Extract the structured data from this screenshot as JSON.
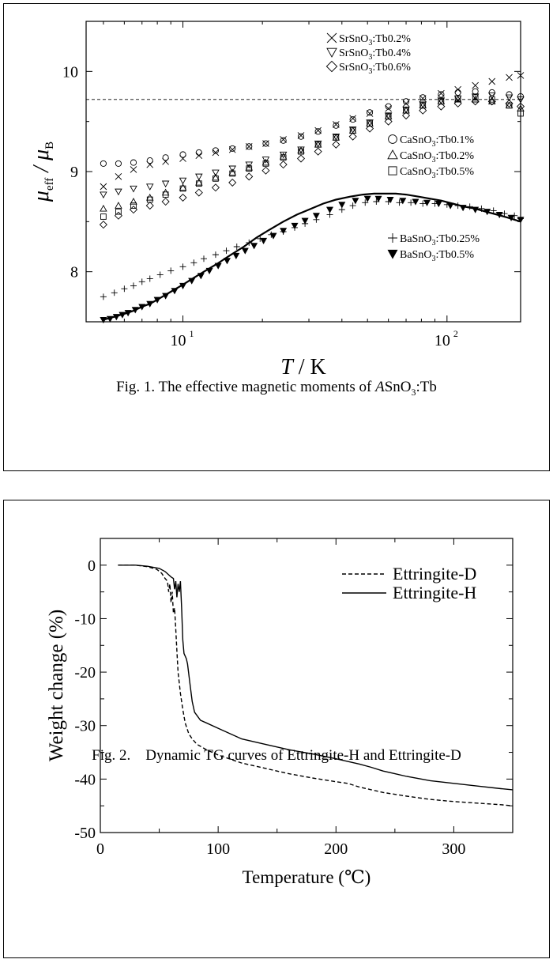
{
  "chart_data": [
    {
      "type": "scatter",
      "figure_caption_prefix": "Fig. 1. The effective magnetic moments of",
      "figure_caption_A": "A",
      "figure_caption_suffix": "SnO",
      "figure_caption_sub": "3",
      "figure_caption_end": ":Tb",
      "ylabel": "μ",
      "ylabel_sub1": "eff",
      "ylabel_mid": " / μ",
      "ylabel_sub2": "B",
      "xlabel_T": "T",
      "xlabel_unit": " / K",
      "xscale": "log",
      "xlim": [
        4.3,
        190
      ],
      "ylim": [
        7.5,
        10.5
      ],
      "x_ticks": [
        {
          "v": 10,
          "base": "10",
          "exp": "1"
        },
        {
          "v": 100,
          "base": "10",
          "exp": "2"
        }
      ],
      "y_ticks": [
        8,
        9,
        10
      ],
      "reference_line": {
        "y": 9.72,
        "style": "dashed"
      },
      "series": [
        {
          "name": "SrSnO3:Tb0.2%",
          "marker": "x",
          "x": [
            5,
            5.7,
            6.5,
            7.5,
            8.6,
            10,
            11.5,
            13.3,
            15.4,
            17.8,
            20.6,
            24,
            28,
            32.5,
            38,
            44,
            51,
            60,
            70,
            81,
            95,
            110,
            128,
            148,
            172,
            190
          ],
          "y": [
            8.85,
            8.95,
            9.02,
            9.07,
            9.1,
            9.13,
            9.16,
            9.19,
            9.22,
            9.25,
            9.28,
            9.32,
            9.36,
            9.41,
            9.47,
            9.53,
            9.58,
            9.63,
            9.68,
            9.73,
            9.78,
            9.82,
            9.86,
            9.9,
            9.94,
            9.96
          ]
        },
        {
          "name": "SrSnO3:Tb0.4%",
          "marker": "triangle-down-open",
          "x": [
            5,
            5.7,
            6.5,
            7.5,
            8.6,
            10,
            11.5,
            13.3,
            15.4,
            17.8,
            20.6,
            24,
            28,
            32.5,
            38,
            44,
            51,
            60,
            70,
            81,
            95,
            110,
            128,
            148,
            172,
            190
          ],
          "y": [
            8.77,
            8.8,
            8.83,
            8.85,
            8.88,
            8.91,
            8.95,
            8.99,
            9.03,
            9.07,
            9.12,
            9.17,
            9.22,
            9.28,
            9.35,
            9.42,
            9.49,
            9.56,
            9.62,
            9.67,
            9.71,
            9.73,
            9.75,
            9.76,
            9.74,
            9.72
          ]
        },
        {
          "name": "SrSnO3:Tb0.6%",
          "marker": "diamond-open",
          "x": [
            5,
            5.7,
            6.5,
            7.5,
            8.6,
            10,
            11.5,
            13.3,
            15.4,
            17.8,
            20.6,
            24,
            28,
            32.5,
            38,
            44,
            51,
            60,
            70,
            81,
            95,
            110,
            128,
            148,
            172,
            190
          ],
          "y": [
            8.47,
            8.56,
            8.62,
            8.66,
            8.7,
            8.74,
            8.79,
            8.84,
            8.89,
            8.95,
            9.01,
            9.07,
            9.13,
            9.2,
            9.27,
            9.35,
            9.43,
            9.5,
            9.56,
            9.61,
            9.65,
            9.68,
            9.7,
            9.7,
            9.68,
            9.65
          ]
        },
        {
          "name": "CaSnO3:Tb0.1%",
          "marker": "circle-open",
          "x": [
            5,
            5.7,
            6.5,
            7.5,
            8.6,
            10,
            11.5,
            13.3,
            15.4,
            17.8,
            20.6,
            24,
            28,
            32.5,
            38,
            44,
            51,
            60,
            70,
            81,
            95,
            110,
            128,
            148,
            172,
            190
          ],
          "y": [
            9.08,
            9.08,
            9.09,
            9.11,
            9.14,
            9.17,
            9.19,
            9.21,
            9.23,
            9.25,
            9.28,
            9.31,
            9.35,
            9.4,
            9.46,
            9.52,
            9.59,
            9.65,
            9.7,
            9.74,
            9.77,
            9.79,
            9.8,
            9.79,
            9.77,
            9.75
          ]
        },
        {
          "name": "CaSnO3:Tb0.2%",
          "marker": "triangle-up-open",
          "x": [
            5,
            5.7,
            6.5,
            7.5,
            8.6,
            10,
            11.5,
            13.3,
            15.4,
            17.8,
            20.6,
            24,
            28,
            32.5,
            38,
            44,
            51,
            60,
            70,
            81,
            95,
            110,
            128,
            148,
            172,
            190
          ],
          "y": [
            8.63,
            8.66,
            8.7,
            8.74,
            8.79,
            8.84,
            8.89,
            8.94,
            8.99,
            9.04,
            9.09,
            9.15,
            9.21,
            9.27,
            9.34,
            9.41,
            9.48,
            9.55,
            9.61,
            9.66,
            9.7,
            9.72,
            9.72,
            9.7,
            9.66,
            9.63
          ]
        },
        {
          "name": "CaSnO3:Tb0.5%",
          "marker": "square-open",
          "x": [
            5,
            5.7,
            6.5,
            7.5,
            8.6,
            10,
            11.5,
            13.3,
            15.4,
            17.8,
            20.6,
            24,
            28,
            32.5,
            38,
            44,
            51,
            60,
            70,
            81,
            95,
            110,
            128,
            148,
            172,
            190
          ],
          "y": [
            8.55,
            8.6,
            8.66,
            8.72,
            8.77,
            8.83,
            8.88,
            8.93,
            8.98,
            9.03,
            9.08,
            9.14,
            9.2,
            9.27,
            9.34,
            9.41,
            9.48,
            9.55,
            9.61,
            9.66,
            9.7,
            9.73,
            9.74,
            9.72,
            9.66,
            9.58
          ]
        },
        {
          "name": "BaSnO3:Tb0.25%",
          "marker": "plus",
          "x": [
            5,
            5.5,
            6,
            6.5,
            7,
            7.5,
            8.2,
            9,
            10,
            11,
            12,
            13.3,
            14.6,
            16,
            17.8,
            19.6,
            21.6,
            24,
            26.5,
            29,
            32,
            36,
            40,
            44,
            49,
            54,
            60,
            66,
            73,
            81,
            90,
            100,
            110,
            122,
            135,
            150,
            165,
            180,
            190
          ],
          "y": [
            7.75,
            7.79,
            7.83,
            7.86,
            7.9,
            7.93,
            7.97,
            8.01,
            8.05,
            8.09,
            8.13,
            8.17,
            8.21,
            8.25,
            8.29,
            8.33,
            8.37,
            8.4,
            8.44,
            8.48,
            8.52,
            8.57,
            8.62,
            8.66,
            8.69,
            8.7,
            8.7,
            8.69,
            8.69,
            8.68,
            8.68,
            8.67,
            8.66,
            8.65,
            8.63,
            8.61,
            8.58,
            8.56,
            8.53
          ]
        },
        {
          "name": "BaSnO3:Tb0.5%",
          "marker": "triangle-down-filled",
          "x": [
            5,
            5.3,
            5.6,
            5.9,
            6.2,
            6.6,
            7,
            7.5,
            8,
            8.6,
            9.3,
            10,
            10.8,
            11.7,
            12.6,
            13.6,
            14.7,
            15.9,
            17.2,
            18.6,
            20.2,
            22,
            24,
            26.5,
            29,
            32,
            36,
            40,
            45,
            50,
            55,
            61,
            68,
            76,
            84,
            93,
            103,
            115,
            128,
            142,
            158,
            175,
            190
          ],
          "y": [
            7.52,
            7.53,
            7.55,
            7.57,
            7.59,
            7.62,
            7.65,
            7.68,
            7.72,
            7.76,
            7.81,
            7.86,
            7.91,
            7.96,
            8.01,
            8.06,
            8.11,
            8.16,
            8.21,
            8.26,
            8.31,
            8.36,
            8.41,
            8.46,
            8.51,
            8.56,
            8.62,
            8.67,
            8.71,
            8.73,
            8.73,
            8.72,
            8.71,
            8.7,
            8.69,
            8.68,
            8.66,
            8.64,
            8.62,
            8.6,
            8.57,
            8.54,
            8.52
          ]
        }
      ],
      "fit_curve": {
        "x": [
          5,
          5.5,
          6,
          6.5,
          7,
          7.5,
          8,
          9,
          10,
          11,
          12,
          13.5,
          15,
          17,
          19,
          21,
          24,
          27,
          30,
          34,
          38,
          43,
          48,
          53,
          58,
          64,
          70,
          78,
          86,
          95,
          105,
          116,
          128,
          140,
          155,
          170,
          190
        ],
        "y": [
          7.52,
          7.55,
          7.58,
          7.61,
          7.65,
          7.68,
          7.72,
          7.8,
          7.87,
          7.94,
          8.0,
          8.08,
          8.16,
          8.25,
          8.34,
          8.41,
          8.5,
          8.57,
          8.62,
          8.68,
          8.72,
          8.75,
          8.77,
          8.78,
          8.78,
          8.78,
          8.77,
          8.75,
          8.73,
          8.71,
          8.68,
          8.65,
          8.63,
          8.6,
          8.57,
          8.54,
          8.5
        ]
      }
    },
    {
      "type": "line",
      "figure_caption": "Fig. 2.    Dynamic TG curves of Ettringite-H and Ettringite-D",
      "xlabel": "Temperature (℃)",
      "ylabel": "Weight change (%)",
      "xlim": [
        0,
        350
      ],
      "ylim": [
        -50,
        5
      ],
      "x_ticks": [
        0,
        100,
        200,
        300
      ],
      "y_ticks": [
        0,
        -10,
        -20,
        -30,
        -40,
        -50
      ],
      "legend_position": "top-right",
      "series": [
        {
          "name": "Ettringite-D",
          "style": "dashed",
          "x": [
            15,
            30,
            40,
            48,
            52,
            55,
            57,
            58,
            59,
            60,
            61,
            62,
            63,
            64,
            65,
            66,
            68,
            70,
            72,
            75,
            78,
            82,
            90,
            100,
            120,
            140,
            160,
            180,
            200,
            210,
            220,
            230,
            240,
            260,
            280,
            300,
            320,
            340,
            350
          ],
          "y": [
            0,
            0,
            -0.3,
            -0.8,
            -1.5,
            -2.5,
            -3,
            -5,
            -3.5,
            -7,
            -5,
            -9,
            -8,
            -12,
            -16,
            -20,
            -24,
            -27,
            -29.5,
            -31.5,
            -32.5,
            -33.5,
            -34.5,
            -35.5,
            -37,
            -38,
            -39,
            -39.8,
            -40.5,
            -40.8,
            -41.5,
            -42,
            -42.5,
            -43.2,
            -43.8,
            -44.2,
            -44.5,
            -44.8,
            -45
          ]
        },
        {
          "name": "Ettringite-H",
          "style": "solid",
          "x": [
            15,
            30,
            40,
            50,
            55,
            58,
            60,
            62,
            63,
            64,
            65,
            66,
            67,
            68,
            69,
            70,
            71,
            72,
            73,
            74,
            76,
            78,
            80,
            85,
            90,
            100,
            120,
            140,
            160,
            180,
            200,
            220,
            230,
            240,
            250,
            260,
            280,
            300,
            320,
            340,
            350
          ],
          "y": [
            0,
            0,
            -0.2,
            -0.6,
            -1.2,
            -1.8,
            -2.2,
            -2.5,
            -4.5,
            -3,
            -6,
            -3.5,
            -5,
            -3,
            -8,
            -14,
            -16.5,
            -17,
            -17.5,
            -18.5,
            -22,
            -25.5,
            -27.5,
            -29,
            -29.5,
            -30.5,
            -32.5,
            -33.5,
            -34.5,
            -35.3,
            -36.2,
            -37.2,
            -37.8,
            -38.5,
            -39,
            -39.5,
            -40.3,
            -40.8,
            -41.3,
            -41.8,
            -42
          ]
        }
      ]
    }
  ]
}
